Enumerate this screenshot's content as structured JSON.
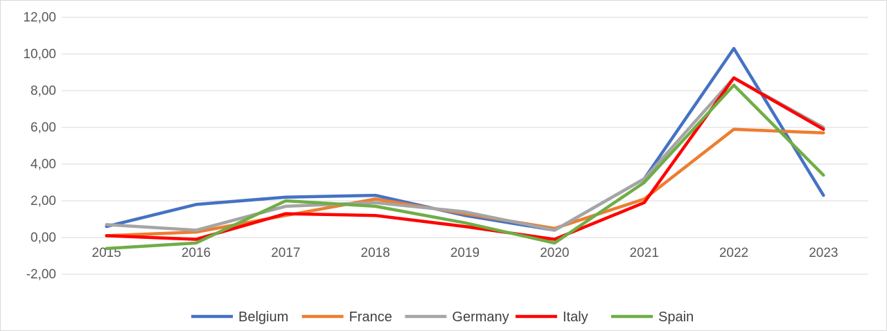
{
  "chart_data": {
    "type": "line",
    "title": "",
    "xlabel": "",
    "ylabel": "",
    "categories": [
      "2015",
      "2016",
      "2017",
      "2018",
      "2019",
      "2020",
      "2021",
      "2022",
      "2023"
    ],
    "ylim": [
      -2,
      12
    ],
    "yticks": [
      -2,
      0,
      2,
      4,
      6,
      8,
      10,
      12
    ],
    "ytick_labels": [
      "-2,00",
      "0,00",
      "2,00",
      "4,00",
      "6,00",
      "8,00",
      "10,00",
      "12,00"
    ],
    "grid": true,
    "legend_position": "bottom",
    "series": [
      {
        "name": "Belgium",
        "color": "#4472c4",
        "values": [
          0.6,
          1.8,
          2.2,
          2.3,
          1.2,
          0.4,
          3.2,
          10.3,
          2.3
        ]
      },
      {
        "name": "France",
        "color": "#ed7d31",
        "values": [
          0.1,
          0.3,
          1.2,
          2.1,
          1.3,
          0.5,
          2.1,
          5.9,
          5.7
        ]
      },
      {
        "name": "Germany",
        "color": "#a5a5a5",
        "values": [
          0.7,
          0.4,
          1.7,
          1.9,
          1.4,
          0.4,
          3.2,
          8.7,
          6.0
        ]
      },
      {
        "name": "Italy",
        "color": "#ff0000",
        "values": [
          0.1,
          -0.1,
          1.3,
          1.2,
          0.6,
          -0.1,
          1.9,
          8.7,
          5.9
        ]
      },
      {
        "name": "Spain",
        "color": "#70ad47",
        "values": [
          -0.6,
          -0.3,
          2.0,
          1.7,
          0.8,
          -0.3,
          3.0,
          8.3,
          3.4
        ]
      }
    ]
  }
}
